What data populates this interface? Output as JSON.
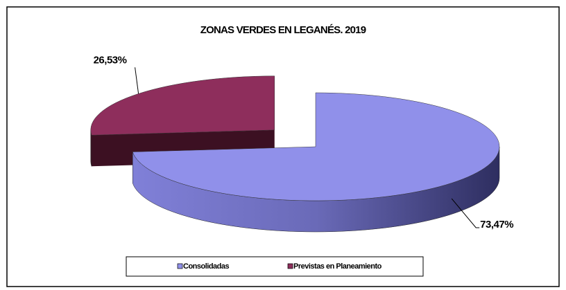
{
  "chart_data": {
    "type": "pie",
    "title": "ZONAS VERDES EN LEGANÉS. 2019",
    "categories": [
      "Consolidadas",
      "Previstas en Planeamiento"
    ],
    "values": [
      73.47,
      26.53
    ],
    "value_labels": [
      "73,47%",
      "26,53%"
    ],
    "colors": [
      "#9090ea",
      "#8e2e5c"
    ],
    "legend": "bottom"
  }
}
